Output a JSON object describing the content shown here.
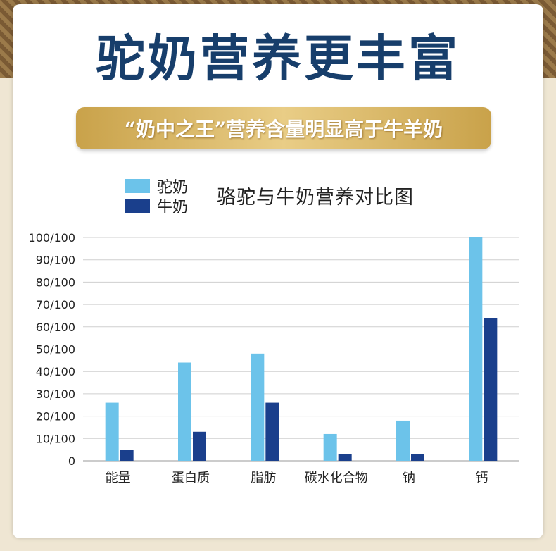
{
  "headline": "驼奶营养更丰富",
  "banner": "“奶中之王”营养含量明显高于牛羊奶",
  "colors": {
    "headline": "#173e6b",
    "camel_milk": "#6cc3ea",
    "cow_milk": "#1a3f8c",
    "gold": "#d9b763"
  },
  "chart_data": {
    "type": "bar",
    "title": "骆驼与牛奶营养对比图",
    "categories": [
      "能量",
      "蛋白质",
      "脂肪",
      "碳水化合物",
      "钠",
      "钙"
    ],
    "series": [
      {
        "name": "驼奶",
        "values": [
          26,
          44,
          48,
          12,
          18,
          100
        ]
      },
      {
        "name": "牛奶",
        "values": [
          5,
          13,
          26,
          3,
          3,
          64
        ]
      }
    ],
    "yticks": [
      "0",
      "10/100",
      "20/100",
      "30/100",
      "40/100",
      "50/100",
      "60/100",
      "70/100",
      "80/100",
      "90/100",
      "100/100"
    ],
    "ylim": [
      0,
      100
    ],
    "grid": true,
    "legend_position": "top-left"
  }
}
